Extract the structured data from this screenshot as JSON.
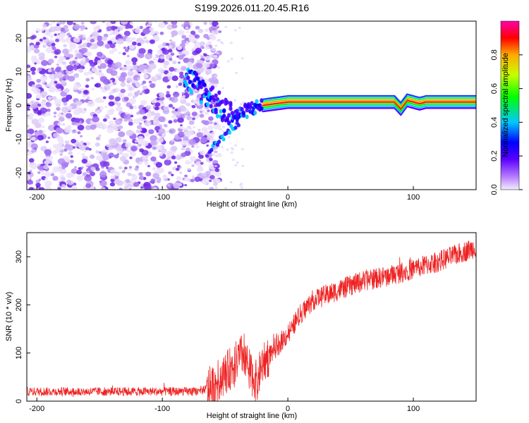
{
  "title": "S199.2026.011.20.45.R16",
  "chart_data": [
    {
      "type": "heatmap",
      "name": "spectrogram",
      "xlabel": "Height of straight line (km)",
      "ylabel": "Frequency (Hz)",
      "xlim": [
        -208,
        150
      ],
      "ylim": [
        -25,
        25
      ],
      "xticks": [
        -200,
        -100,
        0,
        100
      ],
      "xtick_labels": [
        "-200",
        "-100",
        "0",
        "100"
      ],
      "yticks": [
        -20,
        -10,
        0,
        10,
        20
      ],
      "ytick_labels": [
        "-20",
        "-10",
        "0",
        "10",
        "20"
      ],
      "noise_region_x": [
        -208,
        -60
      ],
      "signal_path": [
        {
          "x": -80,
          "y": 8
        },
        {
          "x": -70,
          "y": 5
        },
        {
          "x": -60,
          "y": 2
        },
        {
          "x": -50,
          "y": -2
        },
        {
          "x": -40,
          "y": -3
        },
        {
          "x": -30,
          "y": -1
        },
        {
          "x": -20,
          "y": 0
        },
        {
          "x": -10,
          "y": 0.5
        },
        {
          "x": 0,
          "y": 1
        },
        {
          "x": 20,
          "y": 1
        },
        {
          "x": 85,
          "y": 1
        },
        {
          "x": 90,
          "y": -1
        },
        {
          "x": 95,
          "y": 1.5
        },
        {
          "x": 105,
          "y": 0.5
        },
        {
          "x": 110,
          "y": 1
        },
        {
          "x": 150,
          "y": 1
        }
      ],
      "colorbar": {
        "label": "Normalized spectral amplitude",
        "range": [
          0,
          1
        ],
        "ticks": [
          0.0,
          0.2,
          0.4,
          0.6,
          0.8
        ],
        "tick_labels": [
          "0.0",
          "0.2",
          "0.4",
          "0.6",
          "0.8"
        ]
      }
    },
    {
      "type": "line",
      "name": "snr",
      "xlabel": "Height of straight line (km)",
      "ylabel": "SNR (10 * v/v)",
      "xlim": [
        -208,
        150
      ],
      "ylim": [
        0,
        350
      ],
      "xticks": [
        -200,
        -100,
        0,
        100
      ],
      "xtick_labels": [
        "-200",
        "-100",
        "0",
        "100"
      ],
      "yticks": [
        0,
        100,
        200,
        300
      ],
      "ytick_labels": [
        "0",
        "100",
        "200",
        "300"
      ],
      "line_color": "#ee2222",
      "trend": [
        {
          "x": -208,
          "y": 20
        },
        {
          "x": -70,
          "y": 20
        },
        {
          "x": -60,
          "y": 30
        },
        {
          "x": -45,
          "y": 70
        },
        {
          "x": -35,
          "y": 100
        },
        {
          "x": -30,
          "y": 60
        },
        {
          "x": -25,
          "y": 40
        },
        {
          "x": -20,
          "y": 80
        },
        {
          "x": -10,
          "y": 110
        },
        {
          "x": 0,
          "y": 140
        },
        {
          "x": 10,
          "y": 180
        },
        {
          "x": 20,
          "y": 210
        },
        {
          "x": 40,
          "y": 230
        },
        {
          "x": 60,
          "y": 250
        },
        {
          "x": 80,
          "y": 260
        },
        {
          "x": 100,
          "y": 275
        },
        {
          "x": 120,
          "y": 290
        },
        {
          "x": 150,
          "y": 320
        }
      ]
    }
  ]
}
